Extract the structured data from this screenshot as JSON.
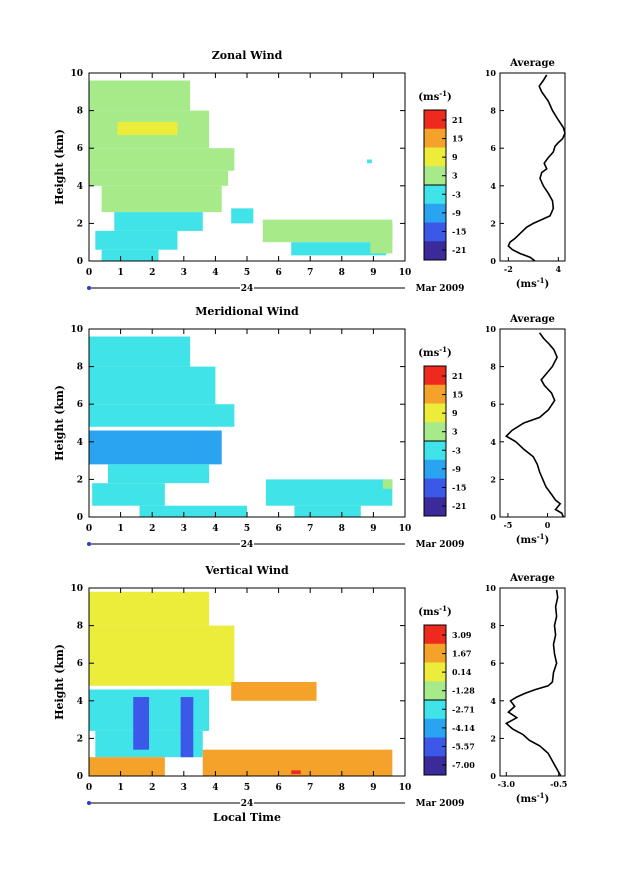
{
  "common": {
    "x_ticks": [
      "0",
      "1",
      "2",
      "3",
      "4",
      "5",
      "6",
      "7",
      "8",
      "9",
      "10"
    ],
    "y_ticks": [
      "0",
      "2",
      "4",
      "6",
      "8",
      "10"
    ],
    "ylabel": "Height (km)",
    "date_day": "24",
    "date_month_year": "Mar 2009",
    "unit_label": "(ms",
    "unit_sup": "-1",
    "unit_close": ")",
    "xlabel": "Local Time",
    "avg_title": "Average"
  },
  "panels": [
    {
      "title": "Zonal Wind",
      "colorbar_ticks": [
        "21",
        "15",
        "9",
        "3",
        "-3",
        "-9",
        "-15",
        "-21"
      ],
      "avg_xticks": [
        "-2",
        "4"
      ],
      "avg_xlim": [
        -3,
        4.8
      ],
      "avg_profile": [
        [
          1.2,
          0.0
        ],
        [
          0.6,
          0.2
        ],
        [
          -0.6,
          0.4
        ],
        [
          -1.5,
          0.6
        ],
        [
          -2.0,
          0.8
        ],
        [
          -1.8,
          1.0
        ],
        [
          -1.2,
          1.2
        ],
        [
          -0.5,
          1.5
        ],
        [
          0.2,
          1.8
        ],
        [
          1.0,
          2.0
        ],
        [
          2.0,
          2.2
        ],
        [
          3.0,
          2.4
        ],
        [
          3.4,
          2.8
        ],
        [
          3.3,
          3.2
        ],
        [
          2.8,
          3.6
        ],
        [
          2.2,
          4.0
        ],
        [
          1.8,
          4.4
        ],
        [
          2.0,
          4.7
        ],
        [
          2.6,
          4.9
        ],
        [
          2.3,
          5.2
        ],
        [
          2.8,
          5.5
        ],
        [
          3.4,
          5.8
        ],
        [
          3.6,
          6.1
        ],
        [
          4.0,
          6.3
        ],
        [
          4.5,
          6.5
        ],
        [
          4.8,
          6.8
        ],
        [
          4.6,
          7.1
        ],
        [
          4.0,
          7.5
        ],
        [
          3.3,
          8.0
        ],
        [
          2.8,
          8.5
        ],
        [
          2.0,
          9.0
        ],
        [
          1.7,
          9.3
        ],
        [
          2.2,
          9.6
        ],
        [
          2.6,
          9.9
        ]
      ],
      "chart_data": {
        "type": "heatmap",
        "title": "Zonal Wind",
        "xlabel": "",
        "ylabel": "Height (km)",
        "xlim": [
          0,
          10
        ],
        "ylim": [
          0,
          10
        ],
        "colorbar_range": [
          -21,
          21
        ],
        "regions": [
          {
            "x0": 0.0,
            "x1": 3.2,
            "y0": 8.0,
            "y1": 9.6,
            "v": 1
          },
          {
            "x0": 0.0,
            "x1": 3.8,
            "y0": 6.0,
            "y1": 8.0,
            "v": 4
          },
          {
            "x0": 0.9,
            "x1": 2.8,
            "y0": 6.7,
            "y1": 7.4,
            "v": 8
          },
          {
            "x0": 0.0,
            "x1": 4.6,
            "y0": 4.8,
            "y1": 6.0,
            "v": 2
          },
          {
            "x0": 0.0,
            "x1": 4.4,
            "y0": 4.0,
            "y1": 4.8,
            "v": 1
          },
          {
            "x0": 0.4,
            "x1": 4.2,
            "y0": 2.6,
            "y1": 4.0,
            "v": 0
          },
          {
            "x0": 0.8,
            "x1": 3.6,
            "y0": 1.6,
            "y1": 2.6,
            "v": -1
          },
          {
            "x0": 0.2,
            "x1": 2.8,
            "y0": 0.6,
            "y1": 1.6,
            "v": -2
          },
          {
            "x0": 0.4,
            "x1": 2.2,
            "y0": 0.0,
            "y1": 0.6,
            "v": -4
          },
          {
            "x0": 4.5,
            "x1": 5.2,
            "y0": 2.0,
            "y1": 2.8,
            "v": -2
          },
          {
            "x0": 5.5,
            "x1": 9.6,
            "y0": 1.0,
            "y1": 2.2,
            "v": 0
          },
          {
            "x0": 6.4,
            "x1": 9.4,
            "y0": 0.3,
            "y1": 1.0,
            "v": -1
          },
          {
            "x0": 8.9,
            "x1": 9.6,
            "y0": 0.4,
            "y1": 2.0,
            "v": 2
          },
          {
            "x0": 8.8,
            "x1": 8.95,
            "y0": 5.2,
            "y1": 5.4,
            "v": -3
          }
        ]
      }
    },
    {
      "title": "Meridional Wind",
      "colorbar_ticks": [
        "21",
        "15",
        "9",
        "3",
        "-3",
        "-9",
        "-15",
        "-21"
      ],
      "avg_xticks": [
        "-5",
        "0"
      ],
      "avg_xlim": [
        -6,
        2.2
      ],
      "avg_profile": [
        [
          -1.0,
          9.8
        ],
        [
          -0.5,
          9.5
        ],
        [
          0.2,
          9.2
        ],
        [
          0.8,
          8.9
        ],
        [
          1.2,
          8.5
        ],
        [
          0.6,
          8.0
        ],
        [
          -0.2,
          7.6
        ],
        [
          -0.8,
          7.3
        ],
        [
          -0.4,
          7.0
        ],
        [
          0.5,
          6.6
        ],
        [
          0.9,
          6.2
        ],
        [
          0.1,
          5.7
        ],
        [
          -1.0,
          5.3
        ],
        [
          -3.0,
          5.0
        ],
        [
          -4.5,
          4.6
        ],
        [
          -5.2,
          4.3
        ],
        [
          -4.0,
          4.0
        ],
        [
          -3.0,
          3.6
        ],
        [
          -1.8,
          3.2
        ],
        [
          -1.3,
          2.8
        ],
        [
          -1.0,
          2.4
        ],
        [
          -0.6,
          2.0
        ],
        [
          -0.2,
          1.6
        ],
        [
          0.5,
          1.2
        ],
        [
          1.0,
          0.9
        ],
        [
          1.6,
          0.7
        ],
        [
          1.0,
          0.4
        ],
        [
          1.8,
          0.2
        ],
        [
          2.0,
          0.0
        ]
      ],
      "chart_data": {
        "type": "heatmap",
        "title": "Meridional Wind",
        "xlabel": "",
        "ylabel": "Height (km)",
        "xlim": [
          0,
          10
        ],
        "ylim": [
          0,
          10
        ],
        "colorbar_range": [
          -21,
          21
        ],
        "regions": [
          {
            "x0": 0.0,
            "x1": 3.2,
            "y0": 8.0,
            "y1": 9.6,
            "v": -4
          },
          {
            "x0": 0.0,
            "x1": 4.0,
            "y0": 6.0,
            "y1": 8.0,
            "v": -3
          },
          {
            "x0": 0.0,
            "x1": 4.6,
            "y0": 4.8,
            "y1": 6.0,
            "v": -4
          },
          {
            "x0": 0.0,
            "x1": 4.2,
            "y0": 2.8,
            "y1": 4.6,
            "v": -7
          },
          {
            "x0": 0.6,
            "x1": 3.8,
            "y0": 1.8,
            "y1": 2.8,
            "v": -5
          },
          {
            "x0": 0.1,
            "x1": 2.4,
            "y0": 0.6,
            "y1": 1.8,
            "v": -3
          },
          {
            "x0": 1.6,
            "x1": 5.0,
            "y0": 0.0,
            "y1": 0.6,
            "v": -4
          },
          {
            "x0": 5.6,
            "x1": 9.6,
            "y0": 0.6,
            "y1": 2.0,
            "v": -2
          },
          {
            "x0": 6.5,
            "x1": 8.6,
            "y0": 0.0,
            "y1": 0.6,
            "v": -3
          },
          {
            "x0": 9.3,
            "x1": 9.6,
            "y0": 1.5,
            "y1": 2.0,
            "v": 0
          }
        ]
      }
    },
    {
      "title": "Vertical Wind",
      "colorbar_ticks": [
        "3.09",
        "1.67",
        "0.14",
        "-1.28",
        "-2.71",
        "-4.14",
        "-5.57",
        "-7.00"
      ],
      "avg_xticks": [
        "-3.0",
        "-0.5"
      ],
      "avg_xlim": [
        -3.3,
        -0.2
      ],
      "avg_profile": [
        [
          -0.6,
          9.9
        ],
        [
          -0.55,
          9.5
        ],
        [
          -0.65,
          9.0
        ],
        [
          -0.6,
          8.5
        ],
        [
          -0.7,
          8.0
        ],
        [
          -0.65,
          7.5
        ],
        [
          -0.75,
          7.0
        ],
        [
          -0.7,
          6.5
        ],
        [
          -0.6,
          6.0
        ],
        [
          -0.75,
          5.5
        ],
        [
          -0.8,
          5.0
        ],
        [
          -1.0,
          4.8
        ],
        [
          -1.6,
          4.6
        ],
        [
          -2.1,
          4.4
        ],
        [
          -2.5,
          4.2
        ],
        [
          -2.8,
          4.0
        ],
        [
          -2.6,
          3.7
        ],
        [
          -2.9,
          3.4
        ],
        [
          -2.5,
          3.1
        ],
        [
          -3.0,
          2.8
        ],
        [
          -2.7,
          2.5
        ],
        [
          -2.2,
          2.2
        ],
        [
          -1.9,
          1.9
        ],
        [
          -1.4,
          1.6
        ],
        [
          -1.0,
          1.2
        ],
        [
          -0.8,
          0.8
        ],
        [
          -0.6,
          0.4
        ],
        [
          -0.4,
          0.0
        ]
      ],
      "chart_data": {
        "type": "heatmap",
        "title": "Vertical Wind",
        "xlabel": "Local Time",
        "ylabel": "Height (km)",
        "xlim": [
          0,
          10
        ],
        "ylim": [
          0,
          10
        ],
        "colorbar_range": [
          -7.0,
          3.09
        ],
        "regions": [
          {
            "x0": 0.0,
            "x1": 3.8,
            "y0": 8.0,
            "y1": 9.8,
            "v": 0.1
          },
          {
            "x0": 0.0,
            "x1": 4.6,
            "y0": 4.8,
            "y1": 8.0,
            "v": 0.0
          },
          {
            "x0": 0.0,
            "x1": 3.8,
            "y0": 2.4,
            "y1": 4.6,
            "v": -3.2
          },
          {
            "x0": 0.2,
            "x1": 3.6,
            "y0": 1.0,
            "y1": 2.4,
            "v": -2.7
          },
          {
            "x0": 1.4,
            "x1": 1.9,
            "y0": 1.4,
            "y1": 4.2,
            "v": -5.0
          },
          {
            "x0": 2.9,
            "x1": 3.3,
            "y0": 1.0,
            "y1": 4.2,
            "v": -5.6
          },
          {
            "x0": 0.0,
            "x1": 2.4,
            "y0": 0.0,
            "y1": 1.0,
            "v": 0.8
          },
          {
            "x0": 3.6,
            "x1": 9.6,
            "y0": 0.0,
            "y1": 1.4,
            "v": 0.9
          },
          {
            "x0": 4.5,
            "x1": 7.2,
            "y0": 4.0,
            "y1": 5.0,
            "v": 1.0
          },
          {
            "x0": 6.4,
            "x1": 6.7,
            "y0": 0.1,
            "y1": 0.3,
            "v": 2.0
          }
        ]
      }
    }
  ]
}
